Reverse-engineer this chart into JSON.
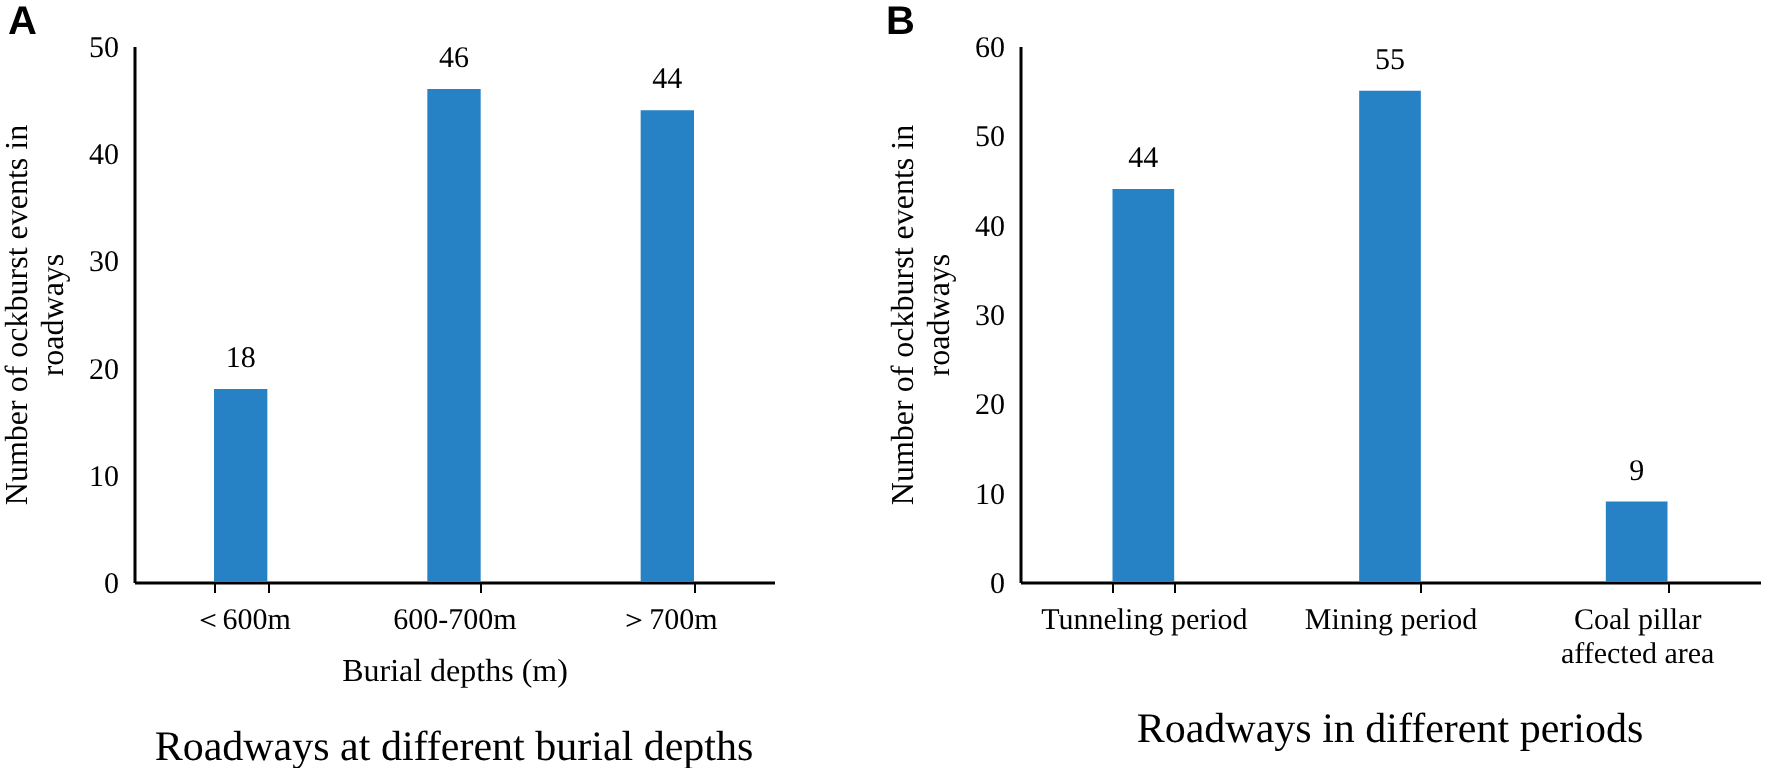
{
  "chart_data": [
    {
      "type": "bar",
      "title": "Roadways at different burial depths",
      "annotations": [
        "A"
      ],
      "xlabel": "Burial depths (m)",
      "ylabel": "Number of ockburst events in roadways",
      "categories": [
        "＜600m",
        "600-700m",
        "＞700m"
      ],
      "values": [
        18,
        46,
        44
      ],
      "color": "#2681c5",
      "ylim": [
        0,
        50
      ],
      "yticks": [
        0,
        10,
        20,
        30,
        40,
        50
      ],
      "data_labels": true,
      "grid": false
    },
    {
      "type": "bar",
      "title": "Roadways in different periods",
      "annotations": [
        "B"
      ],
      "ylabel": "Number of ockburst events in roadways",
      "categories": [
        "Tunneling period",
        "Mining period",
        "Coal pillar affected area"
      ],
      "values": [
        44,
        55,
        9
      ],
      "color": "#2681c5",
      "ylim": [
        0,
        60
      ],
      "yticks": [
        0,
        10,
        20,
        30,
        40,
        50,
        60
      ],
      "data_labels": true,
      "grid": false
    }
  ]
}
